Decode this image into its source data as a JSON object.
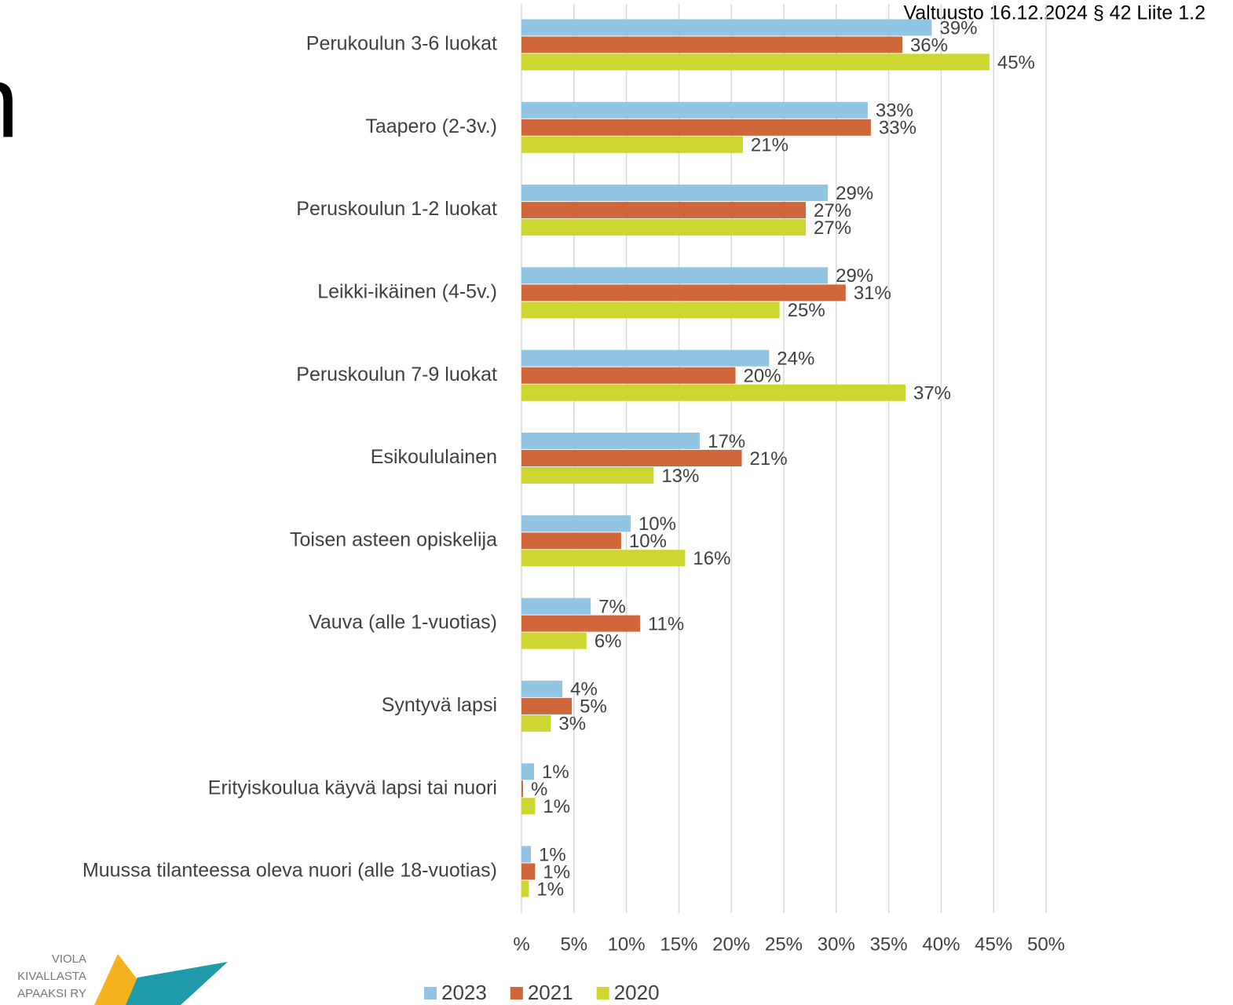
{
  "page": {
    "header": "Valtuusto 16.12.2024 § 42 Liite 1.2",
    "title_fragment": "n",
    "logo": [
      "VIOLA",
      "KIVALLASTA",
      "APAAKSI RY"
    ]
  },
  "chart_data": {
    "type": "barh",
    "categories": [
      "Perukoulun 3-6 luokat",
      "Taapero (2-3v.)",
      "Peruskoulun 1-2 luokat",
      "Leikki-ikäinen (4-5v.)",
      "Peruskoulun 7-9 luokat",
      "Esikoululainen",
      "Toisen asteen opiskelija",
      "Vauva (alle 1-vuotias)",
      "Syntyvä lapsi",
      "Erityiskoulua käyvä lapsi tai nuori",
      "Muussa tilanteessa oleva nuori (alle 18-vuotias)"
    ],
    "series": [
      {
        "name": "2023",
        "color": "#92c5e3",
        "values": [
          39.1,
          33.0,
          29.2,
          29.2,
          23.6,
          17.0,
          10.4,
          6.6,
          3.9,
          1.2,
          0.9
        ],
        "value_labels": [
          "39%",
          "33%",
          "29%",
          "29%",
          "24%",
          "17%",
          "10%",
          "7%",
          "4%",
          "1%",
          "1%"
        ]
      },
      {
        "name": "2021",
        "color": "#d0673a",
        "values": [
          36.3,
          33.3,
          27.1,
          30.9,
          20.4,
          21.0,
          9.5,
          11.3,
          4.8,
          0.15,
          1.3
        ],
        "value_labels": [
          "36%",
          "33%",
          "27%",
          "31%",
          "20%",
          "21%",
          "10%",
          "11%",
          "5%",
          "%",
          "1%"
        ]
      },
      {
        "name": "2020",
        "color": "#cdd631",
        "values": [
          44.6,
          21.1,
          27.1,
          24.6,
          36.6,
          12.6,
          15.6,
          6.2,
          2.8,
          1.3,
          0.7
        ],
        "value_labels": [
          "45%",
          "21%",
          "27%",
          "25%",
          "37%",
          "13%",
          "16%",
          "6%",
          "3%",
          "1%",
          "1%"
        ]
      }
    ],
    "xlim": [
      0,
      50
    ],
    "xticks": [
      {
        "value": 0,
        "label": "%"
      },
      {
        "value": 5,
        "label": "5%"
      },
      {
        "value": 10,
        "label": "10%"
      },
      {
        "value": 15,
        "label": "15%"
      },
      {
        "value": 20,
        "label": "20%"
      },
      {
        "value": 25,
        "label": "25%"
      },
      {
        "value": 30,
        "label": "30%"
      },
      {
        "value": 35,
        "label": "35%"
      },
      {
        "value": 40,
        "label": "40%"
      },
      {
        "value": 45,
        "label": "45%"
      },
      {
        "value": 50,
        "label": "50%"
      }
    ],
    "grid": true,
    "legend": "bottom"
  }
}
